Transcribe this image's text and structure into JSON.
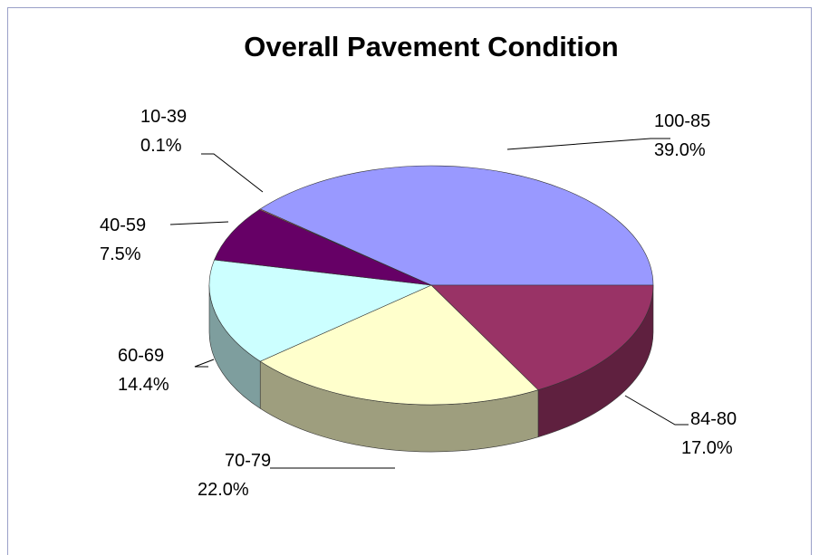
{
  "chart_data": {
    "type": "pie",
    "title": "Overall Pavement Condition",
    "categories": [
      "100-85",
      "84-80",
      "70-79",
      "60-69",
      "40-59",
      "10-39"
    ],
    "values": [
      39.0,
      17.0,
      22.0,
      14.4,
      7.5,
      0.1
    ],
    "value_labels": [
      "39.0%",
      "17.0%",
      "22.0%",
      "14.4%",
      "7.5%",
      "0.1%"
    ],
    "colors": [
      "#9999ff",
      "#993366",
      "#ffffcc",
      "#ccffff",
      "#660066",
      "#ff8080"
    ]
  }
}
